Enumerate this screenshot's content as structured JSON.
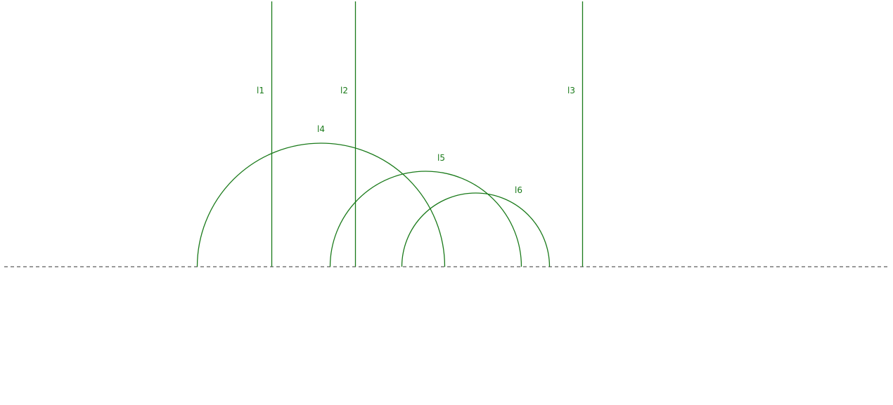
{
  "colors": {
    "geodesic": "#1a7a1a",
    "boundary": "#9a9a9a",
    "background": "#ffffff"
  },
  "boundary": {
    "style": "dashed"
  },
  "geodesics": [
    {
      "type": "vertical",
      "label": "l1"
    },
    {
      "type": "vertical",
      "label": "l2"
    },
    {
      "type": "vertical",
      "label": "l3"
    },
    {
      "type": "semicircle",
      "label": "l4"
    },
    {
      "type": "semicircle",
      "label": "l5"
    },
    {
      "type": "semicircle",
      "label": "l6"
    }
  ]
}
